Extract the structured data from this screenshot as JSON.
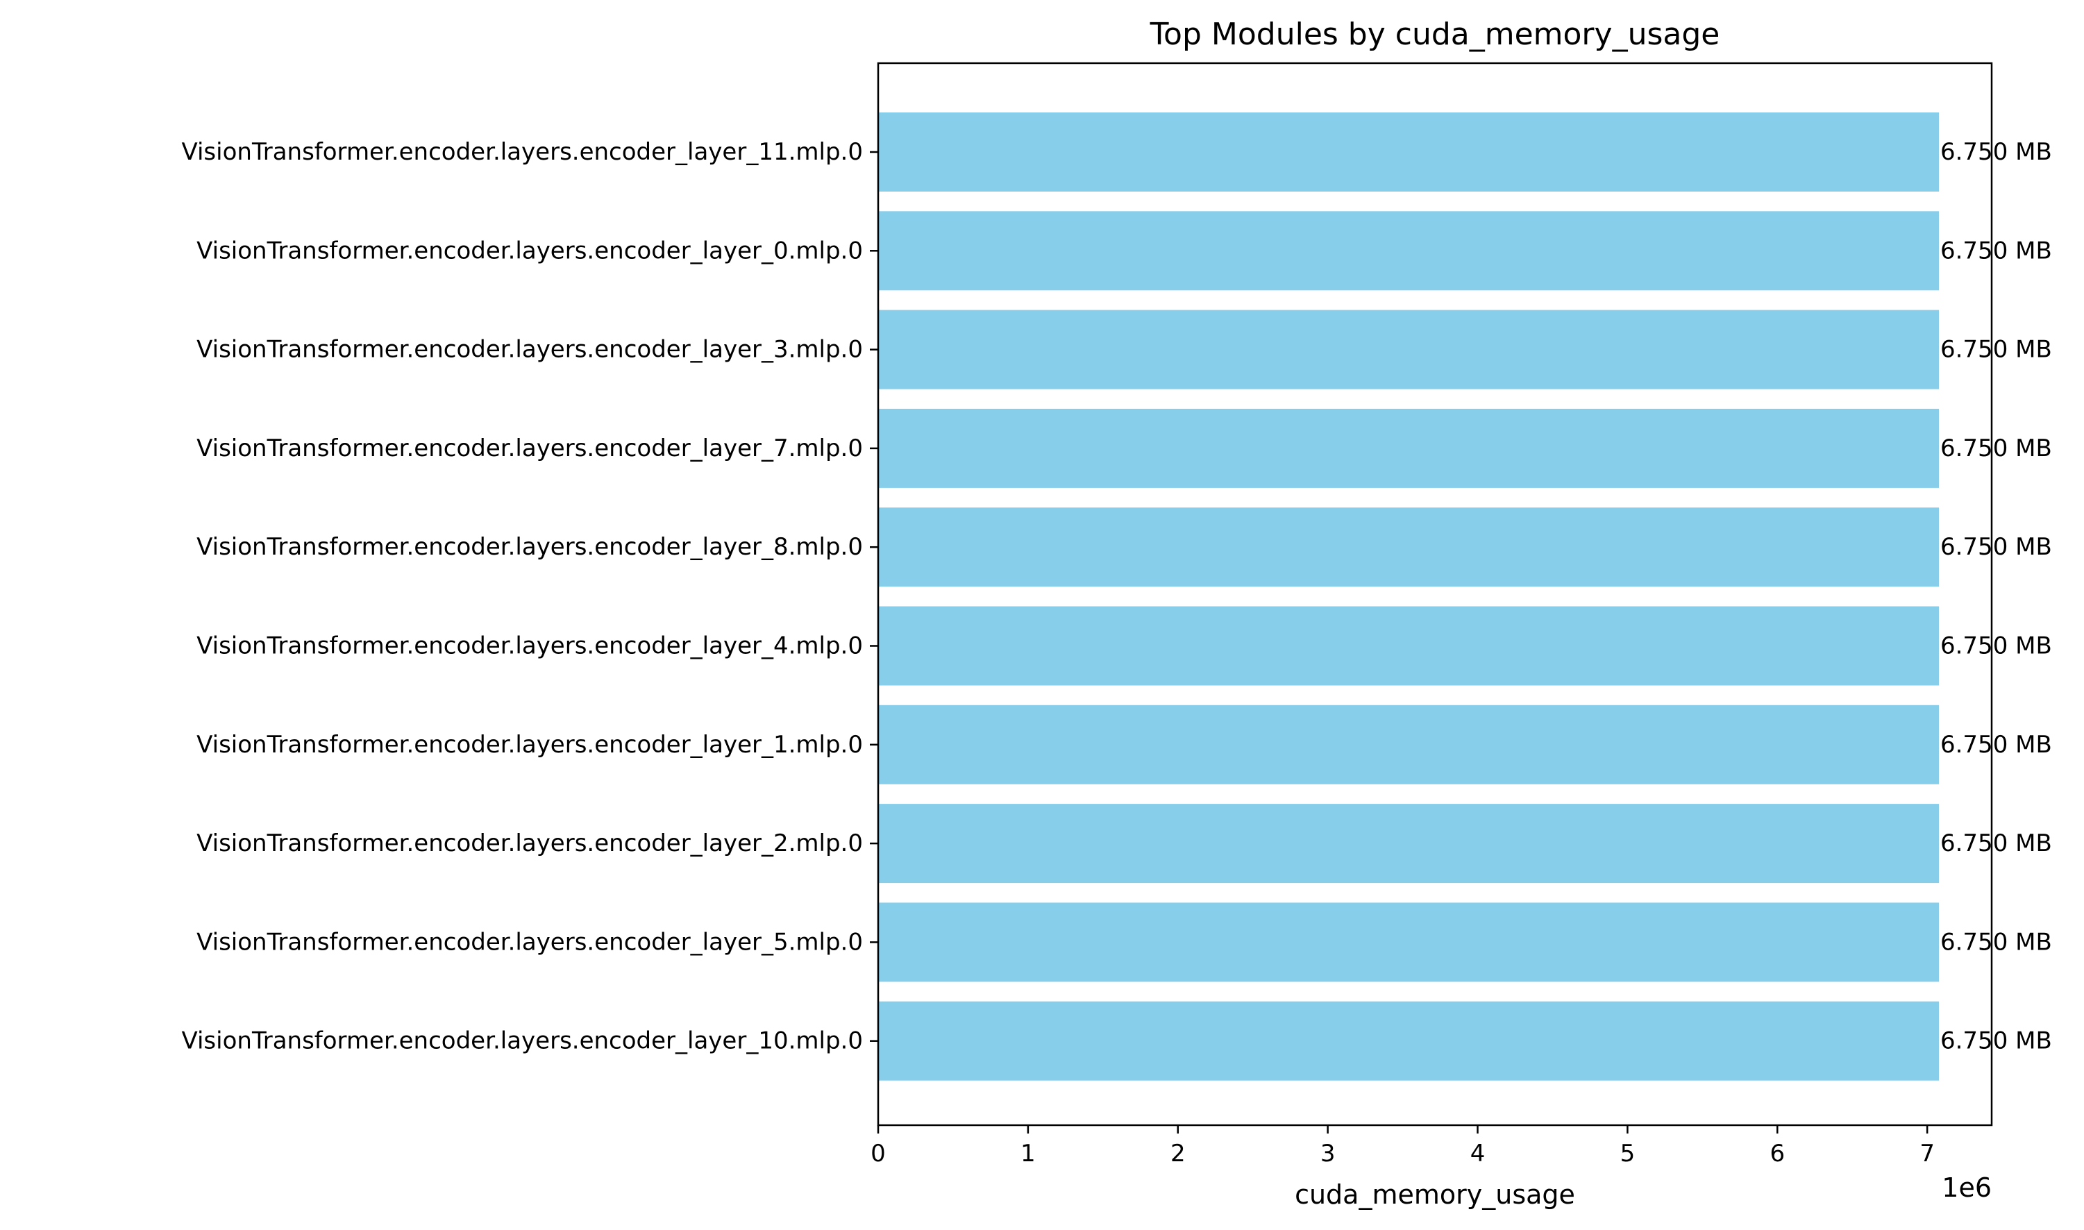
{
  "chart_data": {
    "type": "bar",
    "orientation": "horizontal",
    "title": "Top Modules by cuda_memory_usage",
    "xlabel": "cuda_memory_usage",
    "ylabel": "",
    "x_offset_label": "1e6",
    "xlim": [
      0,
      7430000
    ],
    "x_ticks": [
      0,
      1,
      2,
      3,
      4,
      5,
      6,
      7
    ],
    "x_tick_scale": 1000000,
    "bar_color": "#87CEEB",
    "grid": false,
    "legend": "none",
    "categories": [
      "VisionTransformer.encoder.layers.encoder_layer_11.mlp.0",
      "VisionTransformer.encoder.layers.encoder_layer_0.mlp.0",
      "VisionTransformer.encoder.layers.encoder_layer_3.mlp.0",
      "VisionTransformer.encoder.layers.encoder_layer_7.mlp.0",
      "VisionTransformer.encoder.layers.encoder_layer_8.mlp.0",
      "VisionTransformer.encoder.layers.encoder_layer_4.mlp.0",
      "VisionTransformer.encoder.layers.encoder_layer_1.mlp.0",
      "VisionTransformer.encoder.layers.encoder_layer_2.mlp.0",
      "VisionTransformer.encoder.layers.encoder_layer_5.mlp.0",
      "VisionTransformer.encoder.layers.encoder_layer_10.mlp.0"
    ],
    "values": [
      7077888,
      7077888,
      7077888,
      7077888,
      7077888,
      7077888,
      7077888,
      7077888,
      7077888,
      7077888
    ],
    "data_labels": [
      "6.750 MB",
      "6.750 MB",
      "6.750 MB",
      "6.750 MB",
      "6.750 MB",
      "6.750 MB",
      "6.750 MB",
      "6.750 MB",
      "6.750 MB",
      "6.750 MB"
    ]
  }
}
